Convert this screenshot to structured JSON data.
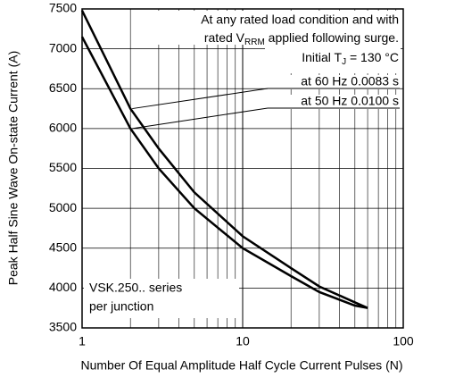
{
  "chart_data": {
    "type": "line",
    "x_label": "Number Of Equal Amplitude Half Cycle Current Pulses (N)",
    "y_label": "Peak Half Sine Wave On-state Current (A)",
    "x": [
      1,
      2,
      3,
      5,
      10,
      20,
      30,
      50,
      60
    ],
    "series": [
      {
        "name": "at 60 Hz 0.0083 s",
        "color": "#000000",
        "values": [
          7480,
          6250,
          5750,
          5200,
          4650,
          4250,
          4020,
          3820,
          3750
        ]
      },
      {
        "name": "at 50 Hz 0.0100 s",
        "color": "#000000",
        "values": [
          7150,
          6000,
          5500,
          5000,
          4500,
          4150,
          3950,
          3780,
          3750
        ]
      }
    ],
    "xlim": [
      1,
      100
    ],
    "xticks": [
      1,
      10,
      100
    ],
    "xlog": true,
    "ylim": [
      3500,
      7500
    ],
    "yticks": [
      3500,
      4000,
      4500,
      5000,
      5500,
      6000,
      6500,
      7000,
      7500
    ],
    "grid": true,
    "conditions": {
      "line1": "At any rated load condition and with",
      "line2": {
        "text": "rated V",
        "sub": "RRM",
        "after": " applied following surge."
      },
      "line3": {
        "text": "Initial T",
        "sub": "J",
        "after": " = 130 °C"
      }
    },
    "device_box": [
      "VSK.250.. series",
      "per junction"
    ]
  }
}
